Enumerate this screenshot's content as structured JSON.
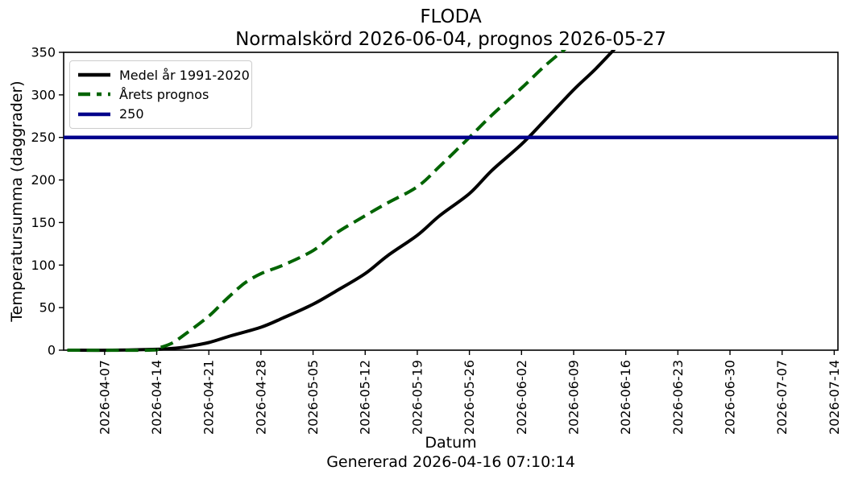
{
  "chart_data": {
    "type": "line",
    "title": "FLODA",
    "subtitle": "Normalskörd 2026-06-04, prognos 2026-05-27",
    "xlabel": "Datum",
    "ylabel": "Temperatursumma (daggrader)",
    "footnote": "Genererad 2026-04-16 07:10:14",
    "ylim": [
      0,
      350
    ],
    "yticks": [
      0,
      50,
      100,
      150,
      200,
      250,
      300,
      350
    ],
    "x_start": "2026-04-01T12:00:00Z",
    "x_end": "2026-07-14T12:00:00Z",
    "xticks": [
      "2026-04-07",
      "2026-04-14",
      "2026-04-21",
      "2026-04-28",
      "2026-05-05",
      "2026-05-12",
      "2026-05-19",
      "2026-05-26",
      "2026-06-02",
      "2026-06-09",
      "2026-06-16",
      "2026-06-23",
      "2026-06-30",
      "2026-07-07",
      "2026-07-14"
    ],
    "grid": false,
    "legend_position": "upper left",
    "hline": {
      "label": "250",
      "value": 250,
      "color": "#00008b"
    },
    "series": [
      {
        "name": "Medel år 1991-2020",
        "color": "#000000",
        "style": "solid",
        "points": [
          [
            "2026-04-02",
            0
          ],
          [
            "2026-04-08",
            0
          ],
          [
            "2026-04-14",
            1
          ],
          [
            "2026-04-16",
            2
          ],
          [
            "2026-04-18",
            4
          ],
          [
            "2026-04-21",
            9
          ],
          [
            "2026-04-24",
            17
          ],
          [
            "2026-04-28",
            27
          ],
          [
            "2026-05-01",
            38
          ],
          [
            "2026-05-05",
            54
          ],
          [
            "2026-05-08",
            69
          ],
          [
            "2026-05-12",
            90
          ],
          [
            "2026-05-15",
            111
          ],
          [
            "2026-05-19",
            135
          ],
          [
            "2026-05-22",
            158
          ],
          [
            "2026-05-26",
            184
          ],
          [
            "2026-05-29",
            211
          ],
          [
            "2026-06-02",
            242
          ],
          [
            "2026-06-05",
            269
          ],
          [
            "2026-06-09",
            306
          ],
          [
            "2026-06-12",
            331
          ],
          [
            "2026-06-16",
            368
          ]
        ]
      },
      {
        "name": "Årets prognos",
        "color": "#006400",
        "style": "dashed",
        "points": [
          [
            "2026-04-02",
            0
          ],
          [
            "2026-04-13",
            0
          ],
          [
            "2026-04-14",
            2
          ],
          [
            "2026-04-16",
            8
          ],
          [
            "2026-04-18",
            20
          ],
          [
            "2026-04-21",
            40
          ],
          [
            "2026-04-23",
            57
          ],
          [
            "2026-04-25",
            73
          ],
          [
            "2026-04-26",
            80
          ],
          [
            "2026-04-28",
            90
          ],
          [
            "2026-05-01",
            100
          ],
          [
            "2026-05-05",
            117
          ],
          [
            "2026-05-08",
            137
          ],
          [
            "2026-05-12",
            158
          ],
          [
            "2026-05-15",
            173
          ],
          [
            "2026-05-19",
            192
          ],
          [
            "2026-05-22",
            216
          ],
          [
            "2026-05-26",
            250
          ],
          [
            "2026-05-29",
            276
          ],
          [
            "2026-06-02",
            308
          ],
          [
            "2026-06-05",
            333
          ],
          [
            "2026-06-08",
            355
          ]
        ]
      }
    ]
  }
}
